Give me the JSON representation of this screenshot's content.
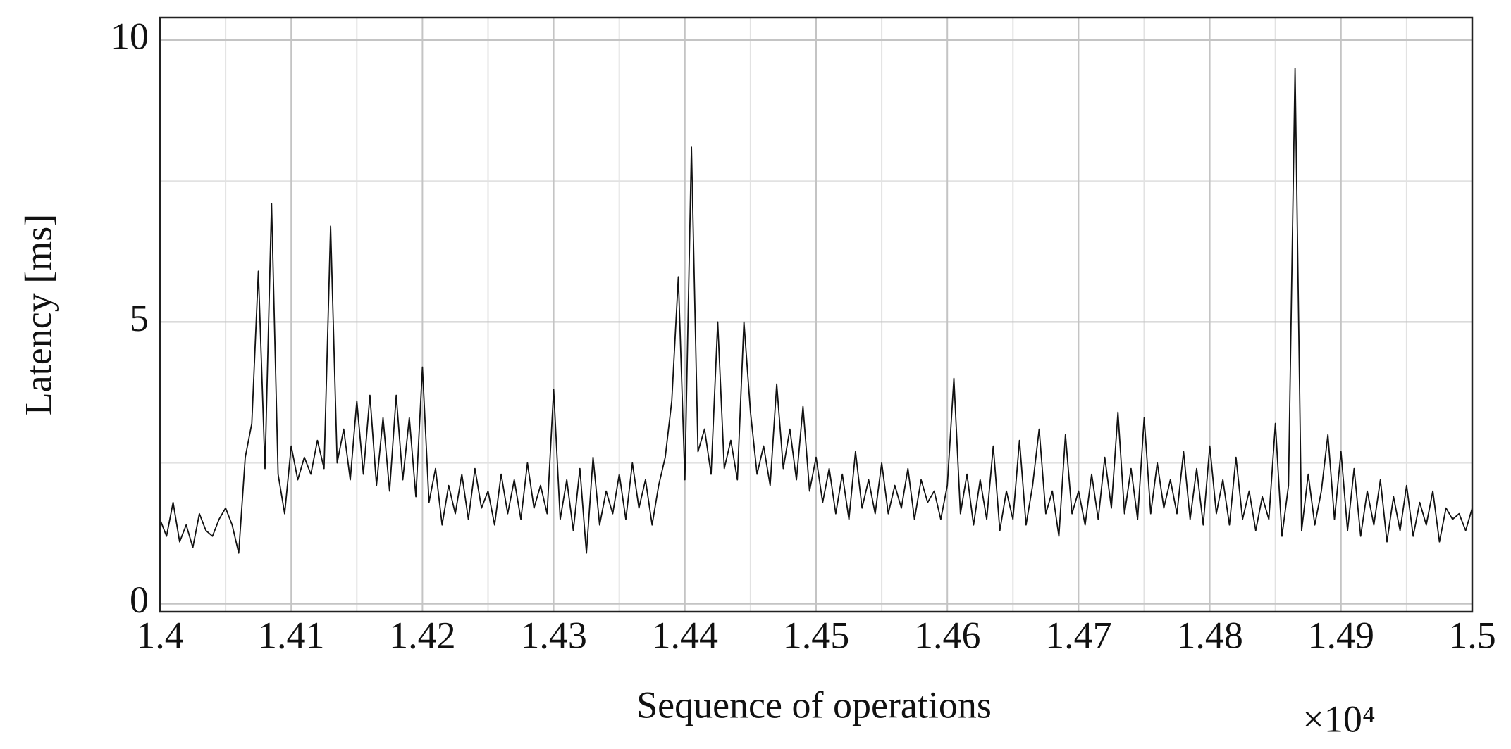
{
  "chart_data": {
    "type": "line",
    "x_label": "Sequence of operations",
    "y_label": "Latency [ms]",
    "x_multiplier": "×10⁴",
    "grid": true,
    "xlim": [
      14000,
      15000
    ],
    "ylim": [
      -0.14,
      10.4
    ],
    "xticks": [
      {
        "value": 14000,
        "label": "1.4"
      },
      {
        "value": 14100,
        "label": "1.41"
      },
      {
        "value": 14200,
        "label": "1.42"
      },
      {
        "value": 14300,
        "label": "1.43"
      },
      {
        "value": 14400,
        "label": "1.44"
      },
      {
        "value": 14500,
        "label": "1.45"
      },
      {
        "value": 14600,
        "label": "1.46"
      },
      {
        "value": 14700,
        "label": "1.47"
      },
      {
        "value": 14800,
        "label": "1.48"
      },
      {
        "value": 14900,
        "label": "1.49"
      },
      {
        "value": 15000,
        "label": "1.5"
      }
    ],
    "minor_xticks": [
      14050,
      14150,
      14250,
      14350,
      14450,
      14550,
      14650,
      14750,
      14850,
      14950
    ],
    "yticks": [
      0,
      5,
      10
    ],
    "minor_yticks": [
      2.5,
      7.5
    ],
    "x": [
      14000,
      14005,
      14010,
      14015,
      14020,
      14025,
      14030,
      14035,
      14040,
      14045,
      14050,
      14055,
      14060,
      14065,
      14070,
      14075,
      14080,
      14085,
      14090,
      14095,
      14100,
      14105,
      14110,
      14115,
      14120,
      14125,
      14130,
      14135,
      14140,
      14145,
      14150,
      14155,
      14160,
      14165,
      14170,
      14175,
      14180,
      14185,
      14190,
      14195,
      14200,
      14205,
      14210,
      14215,
      14220,
      14225,
      14230,
      14235,
      14240,
      14245,
      14250,
      14255,
      14260,
      14265,
      14270,
      14275,
      14280,
      14285,
      14290,
      14295,
      14300,
      14305,
      14310,
      14315,
      14320,
      14325,
      14330,
      14335,
      14340,
      14345,
      14350,
      14355,
      14360,
      14365,
      14370,
      14375,
      14380,
      14385,
      14390,
      14395,
      14400,
      14405,
      14410,
      14415,
      14420,
      14425,
      14430,
      14435,
      14440,
      14445,
      14450,
      14455,
      14460,
      14465,
      14470,
      14475,
      14480,
      14485,
      14490,
      14495,
      14500,
      14505,
      14510,
      14515,
      14520,
      14525,
      14530,
      14535,
      14540,
      14545,
      14550,
      14555,
      14560,
      14565,
      14570,
      14575,
      14580,
      14585,
      14590,
      14595,
      14600,
      14605,
      14610,
      14615,
      14620,
      14625,
      14630,
      14635,
      14640,
      14645,
      14650,
      14655,
      14660,
      14665,
      14670,
      14675,
      14680,
      14685,
      14690,
      14695,
      14700,
      14705,
      14710,
      14715,
      14720,
      14725,
      14730,
      14735,
      14740,
      14745,
      14750,
      14755,
      14760,
      14765,
      14770,
      14775,
      14780,
      14785,
      14790,
      14795,
      14800,
      14805,
      14810,
      14815,
      14820,
      14825,
      14830,
      14835,
      14840,
      14845,
      14850,
      14855,
      14860,
      14865,
      14870,
      14875,
      14880,
      14885,
      14890,
      14895,
      14900,
      14905,
      14910,
      14915,
      14920,
      14925,
      14930,
      14935,
      14940,
      14945,
      14950,
      14955,
      14960,
      14965,
      14970,
      14975,
      14980,
      14985,
      14990,
      14995,
      15000
    ],
    "series": [
      {
        "color": "#111111",
        "values": [
          1.5,
          1.2,
          1.8,
          1.1,
          1.4,
          1.0,
          1.6,
          1.3,
          1.2,
          1.5,
          1.7,
          1.4,
          0.9,
          2.6,
          3.2,
          5.9,
          2.4,
          7.1,
          2.3,
          1.6,
          2.8,
          2.2,
          2.6,
          2.3,
          2.9,
          2.4,
          6.7,
          2.5,
          3.1,
          2.2,
          3.6,
          2.3,
          3.7,
          2.1,
          3.3,
          2.0,
          3.7,
          2.2,
          3.3,
          1.9,
          4.2,
          1.8,
          2.4,
          1.4,
          2.1,
          1.6,
          2.3,
          1.5,
          2.4,
          1.7,
          2.0,
          1.4,
          2.3,
          1.6,
          2.2,
          1.5,
          2.5,
          1.7,
          2.1,
          1.6,
          3.8,
          1.5,
          2.2,
          1.3,
          2.4,
          0.9,
          2.6,
          1.4,
          2.0,
          1.6,
          2.3,
          1.5,
          2.5,
          1.7,
          2.2,
          1.4,
          2.1,
          2.6,
          3.6,
          5.8,
          2.2,
          8.1,
          2.7,
          3.1,
          2.3,
          5.0,
          2.4,
          2.9,
          2.2,
          5.0,
          3.4,
          2.3,
          2.8,
          2.1,
          3.9,
          2.4,
          3.1,
          2.2,
          3.5,
          2.0,
          2.6,
          1.8,
          2.4,
          1.6,
          2.3,
          1.5,
          2.7,
          1.7,
          2.2,
          1.6,
          2.5,
          1.6,
          2.1,
          1.7,
          2.4,
          1.5,
          2.2,
          1.8,
          2.0,
          1.5,
          2.1,
          4.0,
          1.6,
          2.3,
          1.4,
          2.2,
          1.5,
          2.8,
          1.3,
          2.0,
          1.5,
          2.9,
          1.4,
          2.1,
          3.1,
          1.6,
          2.0,
          1.2,
          3.0,
          1.6,
          2.0,
          1.4,
          2.3,
          1.5,
          2.6,
          1.7,
          3.4,
          1.6,
          2.4,
          1.5,
          3.3,
          1.6,
          2.5,
          1.7,
          2.2,
          1.6,
          2.7,
          1.5,
          2.4,
          1.4,
          2.8,
          1.6,
          2.2,
          1.4,
          2.6,
          1.5,
          2.0,
          1.3,
          1.9,
          1.5,
          3.2,
          1.2,
          2.1,
          9.5,
          1.3,
          2.3,
          1.4,
          2.0,
          3.0,
          1.5,
          2.7,
          1.3,
          2.4,
          1.2,
          2.0,
          1.4,
          2.2,
          1.1,
          1.9,
          1.3,
          2.1,
          1.2,
          1.8,
          1.4,
          2.0,
          1.1,
          1.7,
          1.5,
          1.6,
          1.3,
          1.7
        ]
      }
    ]
  }
}
